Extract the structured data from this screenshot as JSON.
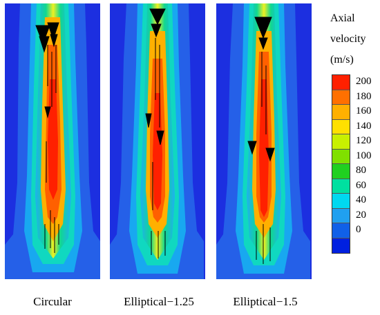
{
  "captions": [
    "Circular",
    "Elliptical−1.25",
    "Elliptical−1.5"
  ],
  "legend": {
    "title_lines": [
      "Axial",
      "velocity",
      "(m/s)"
    ],
    "ticks": [
      "200",
      "180",
      "160",
      "140",
      "120",
      "100",
      "80",
      "60",
      "40",
      "20",
      "0"
    ],
    "colors": [
      "#ff2000",
      "#ff7000",
      "#ffb000",
      "#ffe000",
      "#c8f000",
      "#80e000",
      "#20d020",
      "#00e0a0",
      "#00d8f0",
      "#20a0f0",
      "#1060e8",
      "#0020e0"
    ]
  },
  "colors": {
    "background_field": "#1c2fe0",
    "outer_field": "#2560e8"
  },
  "icons": [
    "velocity-vector-arrow-icon"
  ]
}
